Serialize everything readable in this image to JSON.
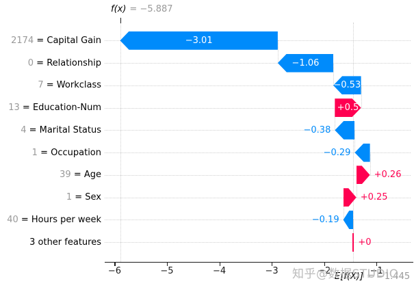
{
  "header": {
    "fx_label": "f(x)",
    "fx_eq": "= −5.887"
  },
  "footer": {
    "ef_label": "E[f(X)]",
    "ef_eq": "= −1.445"
  },
  "watermark": "知乎@数据STUDIO",
  "colors": {
    "positive": "#ff0051",
    "negative": "#008bfb",
    "muted_value_text": "#999999",
    "grid": "#cfcfcf"
  },
  "chart_data": {
    "type": "bar",
    "subtype": "shap-waterfall",
    "title": "",
    "xlabel": "",
    "ylabel": "",
    "base_value": -1.445,
    "fx_value": -5.887,
    "xlim": [
      -6.2,
      -0.3
    ],
    "x_tick_values": [
      -6,
      -5,
      -4,
      -3,
      -2,
      -1
    ],
    "x_ticks": [
      "−6",
      "−5",
      "−4",
      "−3",
      "−2",
      "−1"
    ],
    "grid": "dotted-rows",
    "rows": [
      {
        "value": "2174",
        "feature": "Capital Gain",
        "shap": -3.01,
        "label": "−3.01"
      },
      {
        "value": "0",
        "feature": "Relationship",
        "shap": -1.06,
        "label": "−1.06"
      },
      {
        "value": "7",
        "feature": "Workclass",
        "shap": -0.53,
        "label": "−0.53"
      },
      {
        "value": "13",
        "feature": "Education-Num",
        "shap": 0.5,
        "label": "+0.5"
      },
      {
        "value": "4",
        "feature": "Marital Status",
        "shap": -0.38,
        "label": "−0.38"
      },
      {
        "value": "1",
        "feature": "Occupation",
        "shap": -0.29,
        "label": "−0.29"
      },
      {
        "value": "39",
        "feature": "Age",
        "shap": 0.26,
        "label": "+0.26"
      },
      {
        "value": "1",
        "feature": "Sex",
        "shap": 0.25,
        "label": "+0.25"
      },
      {
        "value": "40",
        "feature": "Hours per week",
        "shap": -0.19,
        "label": "−0.19"
      },
      {
        "value": null,
        "feature": "3 other features",
        "shap": 0.0,
        "label": "+0"
      }
    ]
  }
}
